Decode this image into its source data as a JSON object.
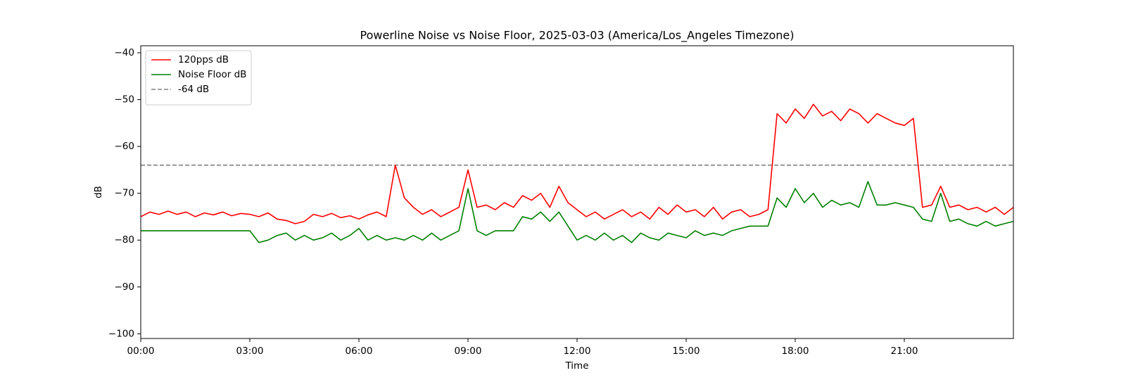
{
  "chart_data": {
    "type": "line",
    "title": "Powerline Noise vs Noise Floor, 2025-03-03 (America/Los_Angeles Timezone)",
    "xlabel": "Time",
    "ylabel": "dB",
    "axis_color": "#ff0000",
    "grid": false,
    "legend": "upper left",
    "x": [
      0,
      0.25,
      0.5,
      0.75,
      1,
      1.25,
      1.5,
      1.75,
      2,
      2.25,
      2.5,
      2.75,
      3,
      3.25,
      3.5,
      3.75,
      4,
      4.25,
      4.5,
      4.75,
      5,
      5.25,
      5.5,
      5.75,
      6,
      6.25,
      6.5,
      6.75,
      7,
      7.25,
      7.5,
      7.75,
      8,
      8.25,
      8.5,
      8.75,
      9,
      9.25,
      9.5,
      9.75,
      10,
      10.25,
      10.5,
      10.75,
      11,
      11.25,
      11.5,
      11.75,
      12,
      12.25,
      12.5,
      12.75,
      13,
      13.25,
      13.5,
      13.75,
      14,
      14.25,
      14.5,
      14.75,
      15,
      15.25,
      15.5,
      15.75,
      16,
      16.25,
      16.5,
      16.75,
      17,
      17.25,
      17.5,
      17.75,
      18,
      18.25,
      18.5,
      18.75,
      19,
      19.25,
      19.5,
      19.75,
      20,
      20.25,
      20.5,
      20.75,
      21,
      21.25,
      21.5,
      21.75,
      22,
      22.25,
      22.5,
      22.75,
      23,
      23.25,
      23.5,
      23.75,
      24
    ],
    "series": [
      {
        "name": "120pps dB",
        "color": "#ff0000",
        "values": [
          -75,
          -74,
          -74.5,
          -73.8,
          -74.5,
          -74,
          -75,
          -74.2,
          -74.6,
          -74,
          -74.8,
          -74.3,
          -74.5,
          -75,
          -74.2,
          -75.5,
          -75.8,
          -76.5,
          -76,
          -74.5,
          -75,
          -74.3,
          -75.2,
          -74.8,
          -75.5,
          -74.6,
          -74,
          -75,
          -64,
          -71,
          -73,
          -74.5,
          -73.5,
          -75,
          -74,
          -73,
          -65,
          -73,
          -72.5,
          -73.5,
          -72,
          -73,
          -70.5,
          -71.5,
          -70,
          -73,
          -68.5,
          -72,
          -73.5,
          -75,
          -74,
          -75.5,
          -74.5,
          -73.5,
          -75,
          -74,
          -75.5,
          -73,
          -74.5,
          -72.5,
          -74,
          -73.5,
          -75,
          -73,
          -75.5,
          -74,
          -73.5,
          -75,
          -74.5,
          -73.5,
          -53,
          -55,
          -52,
          -54,
          -51,
          -53.5,
          -52.5,
          -54.5,
          -52,
          -53,
          -55,
          -53,
          -54,
          -55,
          -55.5,
          -54,
          -73,
          -72.5,
          -68.5,
          -73,
          -72.5,
          -73.5,
          -73,
          -74,
          -73,
          -74.5,
          -73
        ]
      },
      {
        "name": "Noise Floor dB",
        "color": "#008000",
        "values": [
          -78,
          -78,
          -78,
          -78,
          -78,
          -78,
          -78,
          -78,
          -78,
          -78,
          -78,
          -78,
          -78,
          -80.5,
          -80,
          -79,
          -78.5,
          -80,
          -79,
          -80,
          -79.5,
          -78.5,
          -80,
          -79,
          -77.5,
          -80,
          -79,
          -80,
          -79.5,
          -80,
          -79,
          -80,
          -78.5,
          -80,
          -79,
          -78,
          -69,
          -78,
          -79,
          -78,
          -78,
          -78,
          -75,
          -75.5,
          -74,
          -76,
          -74,
          -77,
          -80,
          -79,
          -80,
          -78.5,
          -80,
          -79,
          -80.5,
          -78.5,
          -79.5,
          -80,
          -78.5,
          -79,
          -79.5,
          -78,
          -79,
          -78.5,
          -79,
          -78,
          -77.5,
          -77,
          -77,
          -77,
          -71,
          -73,
          -69,
          -72,
          -70,
          -73,
          -71.5,
          -72.5,
          -72,
          -73,
          -67.5,
          -72.5,
          -72.5,
          -72,
          -72.5,
          -73,
          -75.5,
          -76,
          -70,
          -76,
          -75.5,
          -76.5,
          -77,
          -76,
          -77,
          -76.5,
          -76
        ]
      }
    ],
    "reference_line": {
      "name": "-64 dB",
      "value": -64,
      "color": "#808080"
    },
    "xlim": [
      0,
      24
    ],
    "ylim": [
      -101,
      -38.5
    ],
    "xticks": [
      {
        "value": 0,
        "label": "00:00"
      },
      {
        "value": 3,
        "label": "03:00"
      },
      {
        "value": 6,
        "label": "06:00"
      },
      {
        "value": 9,
        "label": "09:00"
      },
      {
        "value": 12,
        "label": "12:00"
      },
      {
        "value": 15,
        "label": "15:00"
      },
      {
        "value": 18,
        "label": "18:00"
      },
      {
        "value": 21,
        "label": "21:00"
      }
    ],
    "yticks": [
      {
        "value": -100,
        "label": "−100"
      },
      {
        "value": -90,
        "label": "−90"
      },
      {
        "value": -80,
        "label": "−80"
      },
      {
        "value": -70,
        "label": "−70"
      },
      {
        "value": -60,
        "label": "−60"
      },
      {
        "value": -50,
        "label": "−50"
      },
      {
        "value": -40,
        "label": "−40"
      }
    ]
  }
}
